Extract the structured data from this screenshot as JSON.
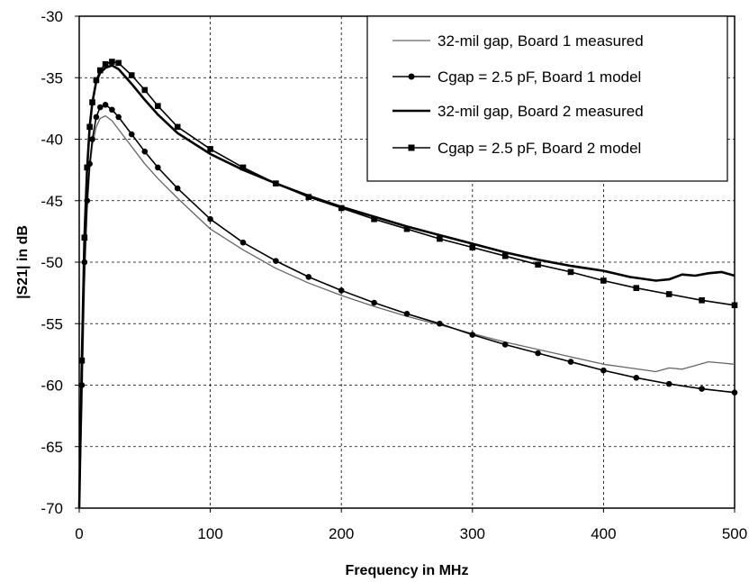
{
  "chart_data": {
    "type": "line",
    "title": "",
    "xlabel": "Frequency in MHz",
    "ylabel": "|S21| in dB",
    "xlim": [
      0,
      500
    ],
    "ylim": [
      -70,
      -30
    ],
    "xticks": [
      0,
      100,
      200,
      300,
      400,
      500
    ],
    "yticks": [
      -70,
      -65,
      -60,
      -55,
      -50,
      -45,
      -40,
      -35,
      -30
    ],
    "grid": true,
    "grid_style": "dashed",
    "legend_position": "top-right",
    "series": [
      {
        "name": "32-mil gap, Board 1 measured",
        "style": "thin-line",
        "color": "#666666",
        "points": [
          [
            0,
            -70
          ],
          [
            2,
            -62
          ],
          [
            4,
            -52
          ],
          [
            6,
            -46
          ],
          [
            8,
            -42.5
          ],
          [
            10,
            -40.5
          ],
          [
            13,
            -39
          ],
          [
            16,
            -38.3
          ],
          [
            20,
            -38.1
          ],
          [
            25,
            -38.5
          ],
          [
            30,
            -39.2
          ],
          [
            40,
            -40.6
          ],
          [
            50,
            -42
          ],
          [
            60,
            -43.2
          ],
          [
            75,
            -44.8
          ],
          [
            100,
            -47.3
          ],
          [
            125,
            -49
          ],
          [
            150,
            -50.5
          ],
          [
            175,
            -51.7
          ],
          [
            200,
            -52.7
          ],
          [
            225,
            -53.6
          ],
          [
            250,
            -54.4
          ],
          [
            275,
            -55.1
          ],
          [
            300,
            -55.8
          ],
          [
            325,
            -56.5
          ],
          [
            350,
            -57.1
          ],
          [
            375,
            -57.7
          ],
          [
            400,
            -58.3
          ],
          [
            420,
            -58.6
          ],
          [
            440,
            -58.9
          ],
          [
            450,
            -58.6
          ],
          [
            460,
            -58.7
          ],
          [
            470,
            -58.4
          ],
          [
            480,
            -58.1
          ],
          [
            490,
            -58.2
          ],
          [
            500,
            -58.3
          ]
        ]
      },
      {
        "name": "Cgap = 2.5 pF, Board 1 model",
        "style": "circle-markers",
        "color": "#000000",
        "points": [
          [
            0,
            -70
          ],
          [
            2,
            -60
          ],
          [
            4,
            -50
          ],
          [
            6,
            -45
          ],
          [
            8,
            -42
          ],
          [
            10,
            -40
          ],
          [
            13,
            -38.2
          ],
          [
            16,
            -37.4
          ],
          [
            20,
            -37.2
          ],
          [
            25,
            -37.6
          ],
          [
            30,
            -38.2
          ],
          [
            40,
            -39.6
          ],
          [
            50,
            -41
          ],
          [
            60,
            -42.3
          ],
          [
            75,
            -44
          ],
          [
            100,
            -46.5
          ],
          [
            125,
            -48.4
          ],
          [
            150,
            -49.9
          ],
          [
            175,
            -51.2
          ],
          [
            200,
            -52.3
          ],
          [
            225,
            -53.3
          ],
          [
            250,
            -54.2
          ],
          [
            275,
            -55
          ],
          [
            300,
            -55.9
          ],
          [
            325,
            -56.7
          ],
          [
            350,
            -57.4
          ],
          [
            375,
            -58.1
          ],
          [
            400,
            -58.8
          ],
          [
            425,
            -59.4
          ],
          [
            450,
            -59.9
          ],
          [
            475,
            -60.3
          ],
          [
            500,
            -60.6
          ]
        ]
      },
      {
        "name": "32-mil gap, Board 2 measured",
        "style": "thick-line",
        "color": "#000000",
        "points": [
          [
            0,
            -70
          ],
          [
            2,
            -58
          ],
          [
            4,
            -48
          ],
          [
            6,
            -42.5
          ],
          [
            8,
            -39
          ],
          [
            10,
            -37
          ],
          [
            13,
            -35.3
          ],
          [
            16,
            -34.6
          ],
          [
            20,
            -34.2
          ],
          [
            25,
            -34
          ],
          [
            30,
            -34.3
          ],
          [
            40,
            -35.5
          ],
          [
            50,
            -36.8
          ],
          [
            60,
            -38
          ],
          [
            75,
            -39.5
          ],
          [
            100,
            -41.2
          ],
          [
            125,
            -42.5
          ],
          [
            150,
            -43.6
          ],
          [
            175,
            -44.6
          ],
          [
            200,
            -45.5
          ],
          [
            225,
            -46.3
          ],
          [
            250,
            -47.1
          ],
          [
            275,
            -47.8
          ],
          [
            300,
            -48.5
          ],
          [
            325,
            -49.2
          ],
          [
            350,
            -49.8
          ],
          [
            375,
            -50.3
          ],
          [
            400,
            -50.7
          ],
          [
            420,
            -51.2
          ],
          [
            440,
            -51.5
          ],
          [
            450,
            -51.4
          ],
          [
            460,
            -51
          ],
          [
            470,
            -51.1
          ],
          [
            480,
            -50.9
          ],
          [
            490,
            -50.8
          ],
          [
            500,
            -51.1
          ]
        ]
      },
      {
        "name": "Cgap = 2.5 pF, Board 2 model",
        "style": "square-markers",
        "color": "#000000",
        "points": [
          [
            0,
            -70
          ],
          [
            2,
            -58
          ],
          [
            4,
            -48
          ],
          [
            6,
            -42.3
          ],
          [
            8,
            -39
          ],
          [
            10,
            -37
          ],
          [
            13,
            -35.2
          ],
          [
            16,
            -34.4
          ],
          [
            20,
            -33.9
          ],
          [
            25,
            -33.7
          ],
          [
            30,
            -33.8
          ],
          [
            40,
            -34.8
          ],
          [
            50,
            -36
          ],
          [
            60,
            -37.3
          ],
          [
            75,
            -39
          ],
          [
            100,
            -40.8
          ],
          [
            125,
            -42.3
          ],
          [
            150,
            -43.6
          ],
          [
            175,
            -44.7
          ],
          [
            200,
            -45.6
          ],
          [
            225,
            -46.5
          ],
          [
            250,
            -47.3
          ],
          [
            275,
            -48.1
          ],
          [
            300,
            -48.8
          ],
          [
            325,
            -49.5
          ],
          [
            350,
            -50.2
          ],
          [
            375,
            -50.8
          ],
          [
            400,
            -51.5
          ],
          [
            425,
            -52.1
          ],
          [
            450,
            -52.6
          ],
          [
            475,
            -53.1
          ],
          [
            500,
            -53.5
          ]
        ]
      }
    ]
  }
}
